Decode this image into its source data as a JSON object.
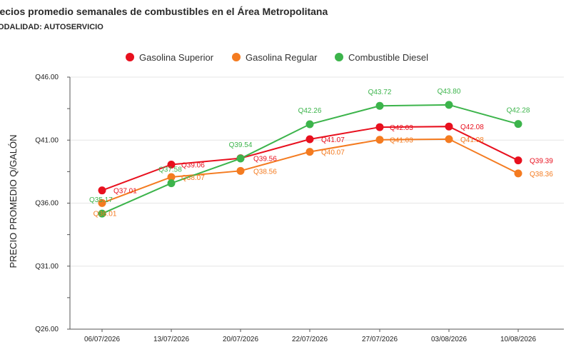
{
  "chart_data": {
    "type": "line",
    "title": "recios promedio semanales de combustibles en el Área Metropolitana",
    "subtitle": "IODALIDAD: AUTOSERVICIO",
    "ylabel": "PRECIO PROMEDIO Q/GALÓN",
    "xlabel": "",
    "categories": [
      "06/07/2026",
      "13/07/2026",
      "20/07/2026",
      "22/07/2026",
      "27/07/2026",
      "03/08/2026",
      "10/08/2026"
    ],
    "ylim": [
      26,
      46
    ],
    "yticks": [
      26,
      31,
      36,
      41,
      46
    ],
    "ytick_labels": [
      "Q26.00",
      "Q31.00",
      "Q36.00",
      "Q41.00",
      "Q46.00"
    ],
    "legend_position": "top",
    "series": [
      {
        "name": "Gasolina Superior",
        "color": "#e8101e",
        "values": [
          37.01,
          39.06,
          39.56,
          41.07,
          42.03,
          42.08,
          39.39
        ],
        "labels": [
          "Q37.01",
          "Q39.06",
          "Q39.56",
          "Q41.07",
          "Q42.03",
          "Q42.08",
          "Q39.39"
        ]
      },
      {
        "name": "Gasolina Regular",
        "color": "#f47b20",
        "values": [
          36.01,
          38.07,
          38.56,
          40.07,
          41.03,
          41.08,
          38.36
        ],
        "labels": [
          "Q36.01",
          "Q38.07",
          "Q38.56",
          "Q40.07",
          "Q41.03",
          "Q41.08",
          "Q38.36"
        ]
      },
      {
        "name": "Combustible Diesel",
        "color": "#3cb44b",
        "values": [
          35.17,
          37.58,
          39.54,
          42.26,
          43.72,
          43.8,
          42.28
        ],
        "labels": [
          "Q35.17",
          "Q37.58",
          "Q39.54",
          "Q42.26",
          "Q43.72",
          "Q43.80",
          "Q42.28"
        ]
      }
    ]
  }
}
